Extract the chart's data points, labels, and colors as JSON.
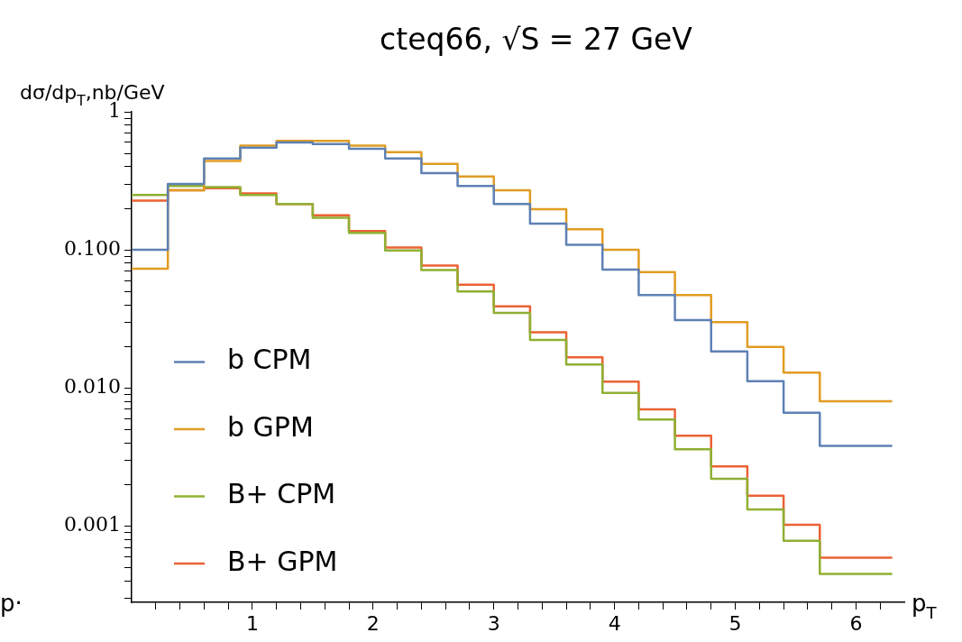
{
  "chart_data": {
    "type": "histogram",
    "title": "cteq66, √S = 27 GeV",
    "xlabel": "p$_{T}$",
    "ylabel": "dσ/dp$_{T}$,nb/GeV",
    "annotations": [
      "p·"
    ],
    "bins": [
      0,
      0.3,
      0.6,
      0.9,
      1.2,
      1.5,
      1.8,
      2.1,
      2.4,
      2.7,
      3.0,
      3.3,
      3.6,
      3.9,
      4.2,
      4.5,
      4.8,
      5.1,
      5.4,
      5.7,
      6.0,
      6.3
    ],
    "series": [
      {
        "name": "b CPM",
        "color": "#5e81b5",
        "values": [
          0.1,
          0.3,
          0.46,
          0.55,
          0.6,
          0.585,
          0.54,
          0.46,
          0.36,
          0.29,
          0.215,
          0.155,
          0.109,
          0.072,
          0.047,
          0.031,
          0.0184,
          0.0112,
          0.0066,
          0.0038,
          0.0038
        ]
      },
      {
        "name": "b GPM",
        "color": "#e19c24",
        "values": [
          0.073,
          0.27,
          0.44,
          0.57,
          0.615,
          0.615,
          0.57,
          0.51,
          0.42,
          0.34,
          0.27,
          0.197,
          0.141,
          0.1,
          0.069,
          0.047,
          0.03,
          0.0198,
          0.0129,
          0.008,
          0.008
        ]
      },
      {
        "name": "B+ CPM",
        "color": "#8fb032",
        "values": [
          0.25,
          0.29,
          0.285,
          0.25,
          0.215,
          0.171,
          0.133,
          0.099,
          0.0715,
          0.05,
          0.035,
          0.0223,
          0.0148,
          0.0092,
          0.0059,
          0.0036,
          0.0022,
          0.00132,
          0.00078,
          0.00045,
          0.00045
        ]
      },
      {
        "name": "B+ GPM",
        "color": "#eb6235",
        "values": [
          0.227,
          0.27,
          0.28,
          0.256,
          0.215,
          0.178,
          0.137,
          0.104,
          0.077,
          0.056,
          0.039,
          0.0253,
          0.0167,
          0.0111,
          0.007,
          0.0045,
          0.0027,
          0.00166,
          0.00102,
          0.00059,
          0.00059
        ]
      }
    ],
    "log": "y",
    "grid": false,
    "legend": "bottom left",
    "xlim": [
      0,
      6.4
    ],
    "xticks": [
      {
        "value": 0.2,
        "label": null
      },
      {
        "value": 0.4,
        "label": null
      },
      {
        "value": 0.6,
        "label": null
      },
      {
        "value": 0.8,
        "label": null
      },
      1,
      {
        "value": 1.2,
        "label": null
      },
      {
        "value": 1.4,
        "label": null
      },
      {
        "value": 1.6,
        "label": null
      },
      {
        "value": 1.8,
        "label": null
      },
      2,
      {
        "value": 2.2,
        "label": null
      },
      {
        "value": 2.4,
        "label": null
      },
      {
        "value": 2.6,
        "label": null
      },
      {
        "value": 2.8,
        "label": null
      },
      3,
      {
        "value": 3.2,
        "label": null
      },
      {
        "value": 3.4,
        "label": null
      },
      {
        "value": 3.6,
        "label": null
      },
      {
        "value": 3.8,
        "label": null
      },
      4,
      {
        "value": 4.2,
        "label": null
      },
      {
        "value": 4.4,
        "label": null
      },
      {
        "value": 4.6,
        "label": null
      },
      {
        "value": 4.8,
        "label": null
      },
      5,
      {
        "value": 5.2,
        "label": null
      },
      {
        "value": 5.4,
        "label": null
      },
      {
        "value": 5.6,
        "label": null
      },
      {
        "value": 5.8,
        "label": null
      },
      6,
      {
        "value": 6.2,
        "label": null
      }
    ],
    "ylim": [
      0.00028,
      1
    ],
    "yticks": [
      {
        "value": 0.0003,
        "label": null
      },
      {
        "value": 0.0004,
        "label": null
      },
      {
        "value": 0.0005,
        "label": null
      },
      {
        "value": 0.0006,
        "label": null
      },
      {
        "value": 0.0007,
        "label": null
      },
      {
        "value": 0.0008,
        "label": null
      },
      {
        "value": 0.0009,
        "label": null
      },
      {
        "value": 0.001,
        "label": "0.001"
      },
      {
        "value": 0.002,
        "label": null
      },
      {
        "value": 0.003,
        "label": null
      },
      {
        "value": 0.004,
        "label": null
      },
      {
        "value": 0.005,
        "label": null
      },
      {
        "value": 0.006,
        "label": null
      },
      {
        "value": 0.007,
        "label": null
      },
      {
        "value": 0.008,
        "label": null
      },
      {
        "value": 0.009,
        "label": null
      },
      {
        "value": 0.01,
        "label": "0.010"
      },
      {
        "value": 0.02,
        "label": null
      },
      {
        "value": 0.03,
        "label": null
      },
      {
        "value": 0.04,
        "label": null
      },
      {
        "value": 0.05,
        "label": null
      },
      {
        "value": 0.06,
        "label": null
      },
      {
        "value": 0.07,
        "label": null
      },
      {
        "value": 0.08,
        "label": null
      },
      {
        "value": 0.09,
        "label": null
      },
      {
        "value": 0.1,
        "label": "0.100"
      },
      {
        "value": 0.2,
        "label": null
      },
      {
        "value": 0.3,
        "label": null
      },
      {
        "value": 0.4,
        "label": null
      },
      {
        "value": 0.5,
        "label": null
      },
      {
        "value": 0.6,
        "label": null
      },
      {
        "value": 0.7,
        "label": null
      },
      {
        "value": 0.8,
        "label": null
      },
      {
        "value": 0.9,
        "label": null
      },
      1
    ]
  }
}
